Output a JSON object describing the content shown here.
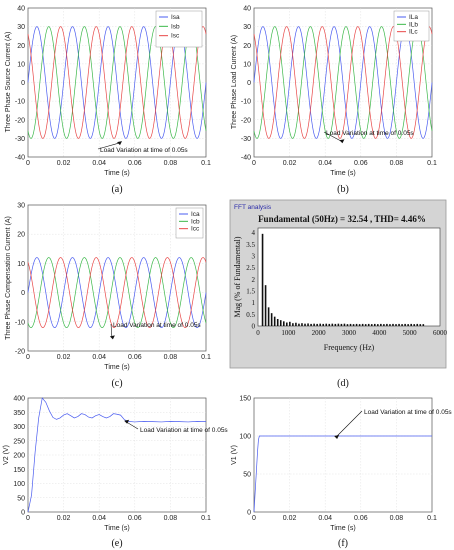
{
  "captions": [
    "(a)",
    "(b)",
    "(c)",
    "(d)",
    "(e)",
    "(f)"
  ],
  "chart_data": [
    {
      "id": "a",
      "type": "line",
      "title": "",
      "xlabel": "Time (s)",
      "ylabel": "Three Phase Source Current (A)",
      "xlim": [
        0,
        0.1
      ],
      "ylim": [
        -40,
        40
      ],
      "xticks": [
        "0",
        "0.02",
        "0.04",
        "0.06",
        "0.08",
        "0.1"
      ],
      "yticks": [
        "-40",
        "-30",
        "-20",
        "-10",
        "0",
        "10",
        "20",
        "30",
        "40"
      ],
      "grid": true,
      "legend_position": "top-right",
      "series": [
        {
          "name": "Isa",
          "color": "#4a5cf0",
          "amplitude": 30,
          "phase_deg": 0,
          "frequency_hz": 50
        },
        {
          "name": "Isb",
          "color": "#3cb84a",
          "amplitude": 30,
          "phase_deg": -120,
          "frequency_hz": 50
        },
        {
          "name": "Isc",
          "color": "#e84848",
          "amplitude": 30,
          "phase_deg": 120,
          "frequency_hz": 50
        }
      ],
      "annotation": {
        "text": "Load Variation at time of 0.05s",
        "x": 0.05,
        "y": -32
      }
    },
    {
      "id": "b",
      "type": "line",
      "title": "",
      "xlabel": "Time (s)",
      "ylabel": "Three Phase Load Current (A)",
      "xlim": [
        0,
        0.1
      ],
      "ylim": [
        -40,
        40
      ],
      "xticks": [
        "0",
        "0.02",
        "0.04",
        "0.06",
        "0.08",
        "0.1"
      ],
      "yticks": [
        "-40",
        "-30",
        "-20",
        "-10",
        "0",
        "10",
        "20",
        "30",
        "40"
      ],
      "grid": true,
      "legend_position": "top-right",
      "series": [
        {
          "name": "ILa",
          "color": "#4a5cf0",
          "amplitude": 30,
          "phase_deg": 0,
          "frequency_hz": 50
        },
        {
          "name": "ILb",
          "color": "#3cb84a",
          "amplitude": 30,
          "phase_deg": -120,
          "frequency_hz": 50
        },
        {
          "name": "ILc",
          "color": "#e84848",
          "amplitude": 30,
          "phase_deg": 120,
          "frequency_hz": 50
        }
      ],
      "annotation": {
        "text": "Load Variation at time of 0.05s",
        "x": 0.048,
        "y": -31
      }
    },
    {
      "id": "c",
      "type": "line",
      "title": "",
      "xlabel": "Time (s)",
      "ylabel": "Three Phase Compensation Current (A)",
      "xlim": [
        0,
        0.1
      ],
      "ylim": [
        -20,
        30
      ],
      "xticks": [
        "0",
        "0.02",
        "0.04",
        "0.06",
        "0.08",
        "0.1"
      ],
      "yticks": [
        "-20",
        "-10",
        "0",
        "10",
        "20",
        "30"
      ],
      "grid": true,
      "legend_position": "top-right",
      "series": [
        {
          "name": "Ica",
          "color": "#4a5cf0",
          "amplitude": 12,
          "phase_deg": 0,
          "frequency_hz": 50
        },
        {
          "name": "Icb",
          "color": "#3cb84a",
          "amplitude": 12,
          "phase_deg": -120,
          "frequency_hz": 50
        },
        {
          "name": "Icc",
          "color": "#e84848",
          "amplitude": 12,
          "phase_deg": 120,
          "frequency_hz": 50
        }
      ],
      "annotation": {
        "text": "Load Variation at time of 0.05s",
        "x": 0.046,
        "y": -15
      }
    },
    {
      "id": "d",
      "type": "bar",
      "header": "FFT analysis",
      "title": "Fundamental (50Hz) = 32.54 , THD= 4.46%",
      "xlabel": "Frequency (Hz)",
      "ylabel": "Mag (% of Fundamental)",
      "xlim": [
        0,
        6000
      ],
      "ylim": [
        0,
        4.2
      ],
      "xticks": [
        "0",
        "1000",
        "2000",
        "3000",
        "4000",
        "5000",
        "6000"
      ],
      "yticks": [
        "0",
        "0.5",
        "1",
        "1.5",
        "2",
        "2.5",
        "3",
        "3.5",
        "4"
      ],
      "x": [
        150,
        250,
        350,
        450,
        550,
        650,
        750,
        850,
        950,
        1050,
        1150,
        1250,
        1350,
        1450,
        1550,
        1650,
        1750,
        1850,
        1950,
        2050,
        2150,
        2250,
        2350,
        2450,
        2550,
        2650,
        2750,
        2850,
        2950,
        3050,
        3150,
        3250,
        3350,
        3450,
        3550,
        3650,
        3750,
        3850,
        3950,
        4050,
        4150,
        4250,
        4350,
        4450,
        4550,
        4650,
        4750,
        4850,
        4950,
        5050,
        5150,
        5250,
        5350,
        5450
      ],
      "values": [
        3.95,
        1.75,
        0.8,
        0.55,
        0.4,
        0.3,
        0.25,
        0.2,
        0.15,
        0.18,
        0.12,
        0.14,
        0.1,
        0.12,
        0.1,
        0.11,
        0.09,
        0.1,
        0.09,
        0.1,
        0.09,
        0.1,
        0.09,
        0.1,
        0.09,
        0.1,
        0.09,
        0.1,
        0.08,
        0.09,
        0.08,
        0.09,
        0.08,
        0.09,
        0.08,
        0.09,
        0.08,
        0.09,
        0.08,
        0.09,
        0.08,
        0.09,
        0.08,
        0.09,
        0.08,
        0.09,
        0.08,
        0.09,
        0.08,
        0.09,
        0.08,
        0.09,
        0.08,
        0.08
      ],
      "bar_color": "#111111"
    },
    {
      "id": "e",
      "type": "line",
      "title": "",
      "xlabel": "Time (s)",
      "ylabel": "V2 (V)",
      "xlim": [
        0,
        0.1
      ],
      "ylim": [
        0,
        400
      ],
      "xticks": [
        "0",
        "0.02",
        "0.04",
        "0.06",
        "0.08",
        "0.1"
      ],
      "yticks": [
        "0",
        "50",
        "100",
        "150",
        "200",
        "250",
        "300",
        "350",
        "400"
      ],
      "grid": true,
      "series": [
        {
          "color": "#4a5cf0",
          "x": [
            0,
            0.002,
            0.004,
            0.006,
            0.008,
            0.01,
            0.012,
            0.014,
            0.016,
            0.018,
            0.02,
            0.022,
            0.024,
            0.026,
            0.028,
            0.03,
            0.032,
            0.034,
            0.036,
            0.038,
            0.04,
            0.042,
            0.044,
            0.046,
            0.048,
            0.05,
            0.052,
            0.054,
            0.056,
            0.06,
            0.065,
            0.07,
            0.075,
            0.08,
            0.085,
            0.09,
            0.095,
            0.1
          ],
          "y": [
            0,
            60,
            210,
            330,
            400,
            385,
            355,
            332,
            325,
            330,
            340,
            345,
            338,
            330,
            335,
            345,
            342,
            333,
            330,
            338,
            342,
            335,
            330,
            335,
            345,
            343,
            340,
            325,
            318,
            316,
            318,
            317,
            316,
            318,
            317,
            316,
            318,
            317
          ]
        }
      ],
      "annotation": {
        "text": "Load Variation at time of 0.05s",
        "x": 0.054,
        "y": 320
      }
    },
    {
      "id": "f",
      "type": "line",
      "title": "",
      "xlabel": "Time (s)",
      "ylabel": "V1 (V)",
      "xlim": [
        0,
        0.1
      ],
      "ylim": [
        0,
        150
      ],
      "xticks": [
        "0",
        "0.02",
        "0.04",
        "0.06",
        "0.08",
        "0.1"
      ],
      "yticks": [
        "0",
        "50",
        "100",
        "150"
      ],
      "grid": true,
      "series": [
        {
          "color": "#4a5cf0",
          "x": [
            0,
            0.001,
            0.002,
            0.0025,
            0.003,
            0.004,
            0.006,
            0.01,
            0.02,
            0.04,
            0.05,
            0.06,
            0.08,
            0.1
          ],
          "y": [
            0,
            40,
            80,
            95,
            100,
            100,
            100,
            100,
            100,
            100,
            100,
            100,
            100,
            100
          ]
        }
      ],
      "annotation": {
        "text": "Load Variation at time of 0.05s",
        "x": 0.045,
        "y": 100
      }
    }
  ]
}
